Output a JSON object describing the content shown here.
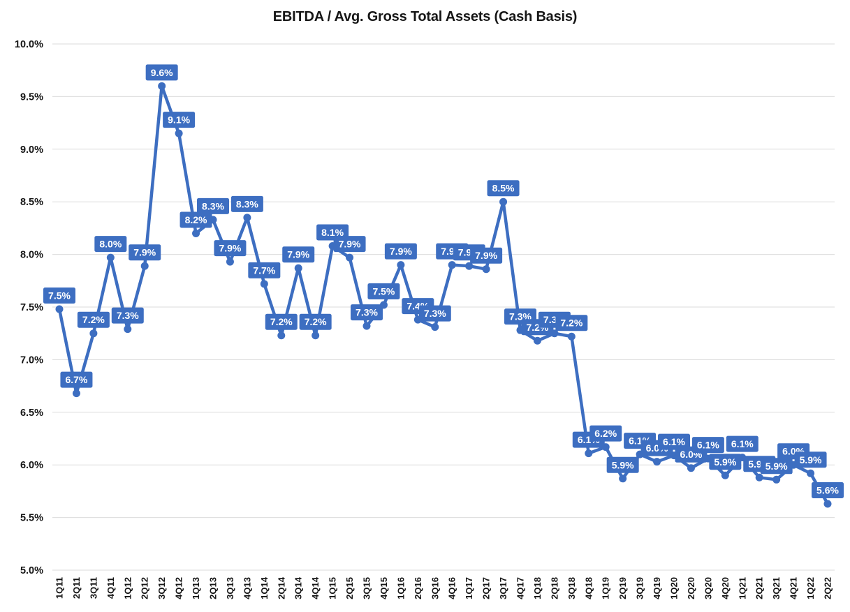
{
  "title": "EBITDA / Avg. Gross Total Assets (Cash Basis)",
  "chart_data": {
    "type": "line",
    "title": "EBITDA / Avg. Gross Total Assets (Cash Basis)",
    "xlabel": "",
    "ylabel": "",
    "legend": "none",
    "grid": "horizontal",
    "ylim": [
      5.0,
      10.0
    ],
    "y_tick_step": 0.5,
    "y_ticks": [
      "10.0%",
      "9.5%",
      "9.0%",
      "8.5%",
      "8.0%",
      "7.5%",
      "7.0%",
      "6.5%",
      "6.0%",
      "5.5%",
      "5.0%"
    ],
    "categories": [
      "1Q11",
      "2Q11",
      "3Q11",
      "4Q11",
      "1Q12",
      "2Q12",
      "3Q12",
      "4Q12",
      "1Q13",
      "2Q13",
      "3Q13",
      "4Q13",
      "1Q14",
      "2Q14",
      "3Q14",
      "4Q14",
      "1Q15",
      "2Q15",
      "3Q15",
      "4Q15",
      "1Q16",
      "2Q16",
      "3Q16",
      "4Q16",
      "1Q17",
      "2Q17",
      "3Q17",
      "4Q17",
      "1Q18",
      "2Q18",
      "3Q18",
      "4Q18",
      "1Q19",
      "2Q19",
      "3Q19",
      "4Q19",
      "1Q20",
      "2Q20",
      "3Q20",
      "4Q20",
      "1Q21",
      "2Q21",
      "3Q21",
      "4Q21",
      "1Q22",
      "2Q22"
    ],
    "values": [
      7.5,
      6.7,
      7.2,
      8.0,
      7.3,
      7.9,
      9.6,
      9.1,
      8.2,
      8.3,
      7.9,
      8.3,
      7.7,
      7.2,
      7.9,
      7.2,
      8.1,
      7.9,
      7.3,
      7.5,
      7.9,
      7.4,
      7.3,
      7.9,
      7.9,
      7.9,
      8.5,
      7.3,
      7.2,
      7.3,
      7.2,
      6.1,
      6.2,
      5.9,
      6.1,
      6.0,
      6.1,
      6.0,
      6.1,
      5.9,
      6.1,
      5.9,
      5.9,
      6.0,
      5.9,
      5.6
    ],
    "data_labels": [
      "7.5%",
      "6.7%",
      "7.2%",
      "8.0%",
      "7.3%",
      "7.9%",
      "9.6%",
      "9.1%",
      "8.2%",
      "8.3%",
      "7.9%",
      "8.3%",
      "7.7%",
      "7.2%",
      "7.9%",
      "7.2%",
      "8.1%",
      "7.9%",
      "7.3%",
      "7.5%",
      "7.9%",
      "7.4%",
      "7.3%",
      "7.9%",
      "7.9%",
      "7.9%",
      "8.5%",
      "7.3%",
      "7.2%",
      "7.3%",
      "7.2%",
      "6.1%",
      "6.2%",
      "5.9%",
      "6.1%",
      "6.0%",
      "6.1%",
      "6.0%",
      "6.1%",
      "5.9%",
      "6.1%",
      "5.9%",
      "5.9%",
      "6.0%",
      "5.9%",
      "5.6%"
    ],
    "point_values_est": [
      7.48,
      6.68,
      7.25,
      7.97,
      7.29,
      7.89,
      9.6,
      9.15,
      8.2,
      8.33,
      7.93,
      8.35,
      7.72,
      7.23,
      7.87,
      7.23,
      8.08,
      7.97,
      7.32,
      7.52,
      7.9,
      7.38,
      7.31,
      7.9,
      7.89,
      7.86,
      8.5,
      7.28,
      7.18,
      7.25,
      7.22,
      6.11,
      6.17,
      5.87,
      6.1,
      6.03,
      6.09,
      5.97,
      6.06,
      5.9,
      6.07,
      5.88,
      5.86,
      6.0,
      5.92,
      5.63
    ],
    "colors": {
      "series": "#3D6EC1",
      "label_bg": "#3D6EC1",
      "label_text": "#FFFFFF",
      "grid": "#DBDBDB",
      "axis_text": "#161616",
      "title_text": "#161616",
      "background": "#FFFFFF"
    }
  }
}
